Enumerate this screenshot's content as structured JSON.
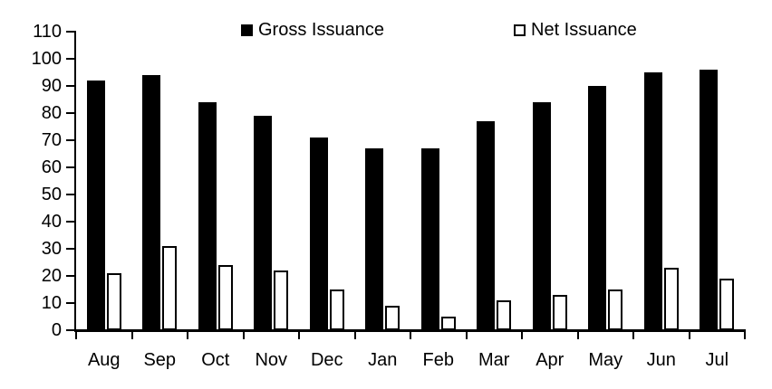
{
  "chart_data": {
    "type": "bar",
    "title": "",
    "xlabel": "",
    "ylabel": "",
    "categories": [
      "Aug",
      "Sep",
      "Oct",
      "Nov",
      "Dec",
      "Jan",
      "Feb",
      "Mar",
      "Apr",
      "May",
      "Jun",
      "Jul"
    ],
    "series": [
      {
        "name": "Gross Issuance",
        "style": "filled",
        "values": [
          92,
          94,
          84,
          79,
          71,
          67,
          67,
          77,
          84,
          90,
          95,
          96
        ]
      },
      {
        "name": "Net Issuance",
        "style": "hollow",
        "values": [
          21,
          31,
          24,
          22,
          15,
          9,
          5,
          11,
          13,
          15,
          23,
          19
        ]
      }
    ],
    "ylim": [
      0,
      110
    ],
    "ytick_step": 10,
    "yticks": [
      0,
      10,
      20,
      30,
      40,
      50,
      60,
      70,
      80,
      90,
      100,
      110
    ],
    "grid": false,
    "legend_position": "top",
    "colors": {
      "bar_fill": "#000000",
      "bar_hollow_fill": "#ffffff",
      "outline": "#000000",
      "text": "#000000",
      "background": "#ffffff"
    }
  }
}
